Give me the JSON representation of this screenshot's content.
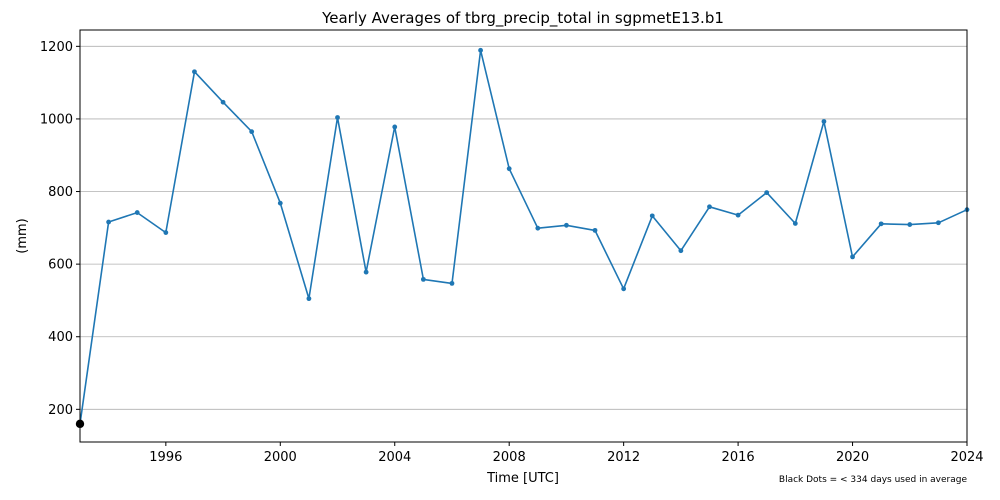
{
  "chart_data": {
    "type": "line",
    "title": "Yearly Averages of tbrg_precip_total in sgpmetE13.b1",
    "xlabel": "Time [UTC]",
    "ylabel": "(mm)",
    "note": "Black Dots = < 334 days used in average",
    "x_ticks": [
      "1996",
      "2000",
      "2004",
      "2008",
      "2012",
      "2016",
      "2020",
      "2024"
    ],
    "y_ticks": [
      "200",
      "400",
      "600",
      "800",
      "1000",
      "1200"
    ],
    "xlim": [
      1993.0,
      2024.0
    ],
    "ylim": [
      110,
      1245
    ],
    "grid": "y",
    "line_color": "#1f77b4",
    "flag_color": "#000000",
    "series": [
      {
        "points": [
          {
            "x": 1993.0,
            "y": 160,
            "flag": true
          },
          {
            "x": 1994.0,
            "y": 716
          },
          {
            "x": 1995.0,
            "y": 742
          },
          {
            "x": 1996.0,
            "y": 687
          },
          {
            "x": 1997.0,
            "y": 1130
          },
          {
            "x": 1998.0,
            "y": 1046
          },
          {
            "x": 1999.0,
            "y": 965
          },
          {
            "x": 2000.0,
            "y": 768
          },
          {
            "x": 2001.0,
            "y": 505
          },
          {
            "x": 2002.0,
            "y": 1004
          },
          {
            "x": 2003.0,
            "y": 578
          },
          {
            "x": 2004.0,
            "y": 978
          },
          {
            "x": 2005.0,
            "y": 558
          },
          {
            "x": 2006.0,
            "y": 547
          },
          {
            "x": 2007.0,
            "y": 1189
          },
          {
            "x": 2008.0,
            "y": 863
          },
          {
            "x": 2009.0,
            "y": 699
          },
          {
            "x": 2010.0,
            "y": 707
          },
          {
            "x": 2011.0,
            "y": 693
          },
          {
            "x": 2012.0,
            "y": 532
          },
          {
            "x": 2013.0,
            "y": 733
          },
          {
            "x": 2014.0,
            "y": 637
          },
          {
            "x": 2015.0,
            "y": 758
          },
          {
            "x": 2016.0,
            "y": 735
          },
          {
            "x": 2017.0,
            "y": 797
          },
          {
            "x": 2018.0,
            "y": 712
          },
          {
            "x": 2019.0,
            "y": 993
          },
          {
            "x": 2020.0,
            "y": 620
          },
          {
            "x": 2021.0,
            "y": 711
          },
          {
            "x": 2022.0,
            "y": 709
          },
          {
            "x": 2023.0,
            "y": 714
          },
          {
            "x": 2024.0,
            "y": 750
          }
        ]
      }
    ]
  }
}
